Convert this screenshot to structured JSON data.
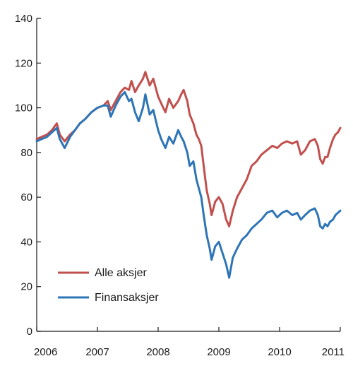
{
  "chart_data": {
    "type": "line",
    "title": "",
    "xlabel": "",
    "ylabel": "",
    "xlim": [
      2006,
      2011
    ],
    "ylim": [
      0,
      140
    ],
    "x_ticks": [
      "2006",
      "2007",
      "2008",
      "2009",
      "2010",
      "2011"
    ],
    "y_ticks": [
      "0",
      "20",
      "40",
      "60",
      "80",
      "100",
      "120",
      "140"
    ],
    "grid": false,
    "legend": "bottom-left",
    "series": [
      {
        "name": "Alle aksjer",
        "color": "#c0504d",
        "points": [
          [
            2006.0,
            86
          ],
          [
            2006.08,
            87
          ],
          [
            2006.17,
            88
          ],
          [
            2006.25,
            90
          ],
          [
            2006.33,
            93
          ],
          [
            2006.38,
            88
          ],
          [
            2006.46,
            85
          ],
          [
            2006.55,
            88
          ],
          [
            2006.63,
            90
          ],
          [
            2006.71,
            93
          ],
          [
            2006.8,
            95
          ],
          [
            2006.9,
            98
          ],
          [
            2007.0,
            100
          ],
          [
            2007.1,
            101
          ],
          [
            2007.17,
            103
          ],
          [
            2007.22,
            99
          ],
          [
            2007.3,
            103
          ],
          [
            2007.38,
            107
          ],
          [
            2007.45,
            109
          ],
          [
            2007.52,
            108
          ],
          [
            2007.56,
            112
          ],
          [
            2007.62,
            107
          ],
          [
            2007.68,
            110
          ],
          [
            2007.75,
            113
          ],
          [
            2007.79,
            116
          ],
          [
            2007.86,
            110
          ],
          [
            2007.92,
            113
          ],
          [
            2008.0,
            105
          ],
          [
            2008.05,
            102
          ],
          [
            2008.12,
            98
          ],
          [
            2008.18,
            104
          ],
          [
            2008.25,
            100
          ],
          [
            2008.33,
            103
          ],
          [
            2008.38,
            106
          ],
          [
            2008.42,
            108
          ],
          [
            2008.48,
            103
          ],
          [
            2008.52,
            97
          ],
          [
            2008.58,
            93
          ],
          [
            2008.63,
            88
          ],
          [
            2008.67,
            86
          ],
          [
            2008.71,
            83
          ],
          [
            2008.75,
            74
          ],
          [
            2008.8,
            63
          ],
          [
            2008.85,
            57
          ],
          [
            2008.88,
            52
          ],
          [
            2008.94,
            58
          ],
          [
            2009.0,
            60
          ],
          [
            2009.06,
            57
          ],
          [
            2009.12,
            50
          ],
          [
            2009.17,
            47
          ],
          [
            2009.23,
            54
          ],
          [
            2009.3,
            60
          ],
          [
            2009.38,
            64
          ],
          [
            2009.46,
            68
          ],
          [
            2009.54,
            74
          ],
          [
            2009.62,
            76
          ],
          [
            2009.7,
            79
          ],
          [
            2009.79,
            81
          ],
          [
            2009.88,
            83
          ],
          [
            2009.96,
            82
          ],
          [
            2010.04,
            84
          ],
          [
            2010.12,
            85
          ],
          [
            2010.21,
            84
          ],
          [
            2010.29,
            85
          ],
          [
            2010.35,
            79
          ],
          [
            2010.42,
            81
          ],
          [
            2010.5,
            85
          ],
          [
            2010.58,
            86
          ],
          [
            2010.63,
            83
          ],
          [
            2010.67,
            77
          ],
          [
            2010.71,
            75
          ],
          [
            2010.75,
            78
          ],
          [
            2010.79,
            78
          ],
          [
            2010.83,
            82
          ],
          [
            2010.88,
            86
          ],
          [
            2010.92,
            88
          ],
          [
            2010.96,
            89
          ],
          [
            2011.0,
            91
          ]
        ]
      },
      {
        "name": "Finansaksjer",
        "color": "#2e75b6",
        "points": [
          [
            2006.0,
            85
          ],
          [
            2006.08,
            86
          ],
          [
            2006.17,
            87
          ],
          [
            2006.25,
            89
          ],
          [
            2006.33,
            91
          ],
          [
            2006.38,
            86
          ],
          [
            2006.46,
            82
          ],
          [
            2006.55,
            87
          ],
          [
            2006.63,
            90
          ],
          [
            2006.71,
            93
          ],
          [
            2006.8,
            95
          ],
          [
            2006.9,
            98
          ],
          [
            2007.0,
            100
          ],
          [
            2007.1,
            101
          ],
          [
            2007.17,
            101
          ],
          [
            2007.22,
            96
          ],
          [
            2007.3,
            101
          ],
          [
            2007.38,
            105
          ],
          [
            2007.45,
            107
          ],
          [
            2007.52,
            103
          ],
          [
            2007.56,
            104
          ],
          [
            2007.62,
            98
          ],
          [
            2007.68,
            94
          ],
          [
            2007.75,
            100
          ],
          [
            2007.79,
            106
          ],
          [
            2007.86,
            97
          ],
          [
            2007.92,
            99
          ],
          [
            2008.0,
            90
          ],
          [
            2008.05,
            86
          ],
          [
            2008.12,
            82
          ],
          [
            2008.18,
            87
          ],
          [
            2008.25,
            84
          ],
          [
            2008.33,
            90
          ],
          [
            2008.38,
            87
          ],
          [
            2008.42,
            85
          ],
          [
            2008.48,
            80
          ],
          [
            2008.52,
            74
          ],
          [
            2008.58,
            76
          ],
          [
            2008.63,
            68
          ],
          [
            2008.67,
            64
          ],
          [
            2008.71,
            60
          ],
          [
            2008.75,
            52
          ],
          [
            2008.8,
            43
          ],
          [
            2008.85,
            37
          ],
          [
            2008.88,
            32
          ],
          [
            2008.94,
            38
          ],
          [
            2009.0,
            40
          ],
          [
            2009.06,
            35
          ],
          [
            2009.12,
            30
          ],
          [
            2009.17,
            24
          ],
          [
            2009.23,
            33
          ],
          [
            2009.3,
            37
          ],
          [
            2009.38,
            41
          ],
          [
            2009.46,
            43
          ],
          [
            2009.54,
            46
          ],
          [
            2009.62,
            48
          ],
          [
            2009.7,
            50
          ],
          [
            2009.79,
            53
          ],
          [
            2009.88,
            54
          ],
          [
            2009.96,
            51
          ],
          [
            2010.04,
            53
          ],
          [
            2010.12,
            54
          ],
          [
            2010.21,
            52
          ],
          [
            2010.29,
            53
          ],
          [
            2010.35,
            50
          ],
          [
            2010.42,
            52
          ],
          [
            2010.5,
            54
          ],
          [
            2010.58,
            55
          ],
          [
            2010.63,
            52
          ],
          [
            2010.67,
            47
          ],
          [
            2010.71,
            46
          ],
          [
            2010.75,
            48
          ],
          [
            2010.79,
            47
          ],
          [
            2010.83,
            49
          ],
          [
            2010.88,
            50
          ],
          [
            2010.92,
            52
          ],
          [
            2010.96,
            53
          ],
          [
            2011.0,
            54
          ]
        ]
      }
    ]
  }
}
